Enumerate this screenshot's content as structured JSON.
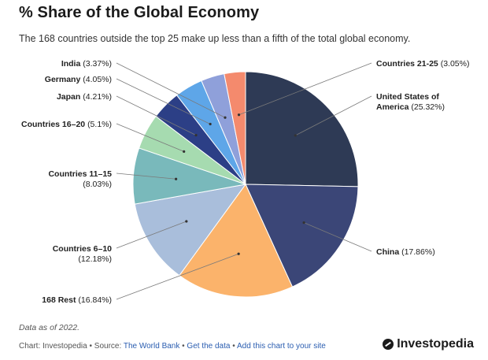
{
  "header": {
    "title": "% Share of the Global Economy",
    "subtitle": "The 168 countries outside the top 25 make up less than a fifth of the total global economy."
  },
  "chart_data": {
    "type": "pie",
    "title": "% Share of the Global Economy",
    "unit": "%",
    "start": "top",
    "direction": "clockwise",
    "slices": [
      {
        "name": "United States of America",
        "value": 25.32,
        "value_label": "(25.32%)",
        "label_lines": [
          "United States of",
          "America (25.32%)"
        ],
        "color": "#2e3a55"
      },
      {
        "name": "China",
        "value": 17.86,
        "value_label": "(17.86%)",
        "label_lines": [
          "China (17.86%)"
        ],
        "color": "#3b4677"
      },
      {
        "name": "168 Rest",
        "value": 16.84,
        "value_label": "(16.84%)",
        "label_lines": [
          "168 Rest (16.84%)"
        ],
        "color": "#fbb36b"
      },
      {
        "name": "Countries 6–10",
        "value": 12.18,
        "value_label": "(12.18%)",
        "label_lines": [
          "Countries 6–10",
          "(12.18%)"
        ],
        "color": "#a9bedb"
      },
      {
        "name": "Countries 11–15",
        "value": 8.03,
        "value_label": "(8.03%)",
        "label_lines": [
          "Countries 11–15",
          "(8.03%)"
        ],
        "color": "#79b9bb"
      },
      {
        "name": "Countries 16–20",
        "value": 5.1,
        "value_label": "(5.1%)",
        "label_lines": [
          "Countries 16–20 (5.1%)"
        ],
        "color": "#a6dbb0"
      },
      {
        "name": "Japan",
        "value": 4.21,
        "value_label": "(4.21%)",
        "label_lines": [
          "Japan (4.21%)"
        ],
        "color": "#2c3f86"
      },
      {
        "name": "Germany",
        "value": 4.05,
        "value_label": "(4.05%)",
        "label_lines": [
          "Germany (4.05%)"
        ],
        "color": "#5ea6e8"
      },
      {
        "name": "India",
        "value": 3.37,
        "value_label": "(3.37%)",
        "label_lines": [
          "India (3.37%)"
        ],
        "color": "#8fa0da"
      },
      {
        "name": "Countries 21-25",
        "value": 3.05,
        "value_label": "(3.05%)",
        "label_lines": [
          "Countries 21-25 (3.05%)"
        ],
        "color": "#f48a6d"
      }
    ]
  },
  "footer": {
    "note": "Data as of 2022.",
    "chart_credit": "Chart: Investopedia",
    "sep": " • ",
    "source_prefix": "Source: ",
    "source_name": "The World Bank",
    "get_data": "Get the data",
    "add_chart": "Add this chart to your site",
    "brand": "Investopedia"
  }
}
